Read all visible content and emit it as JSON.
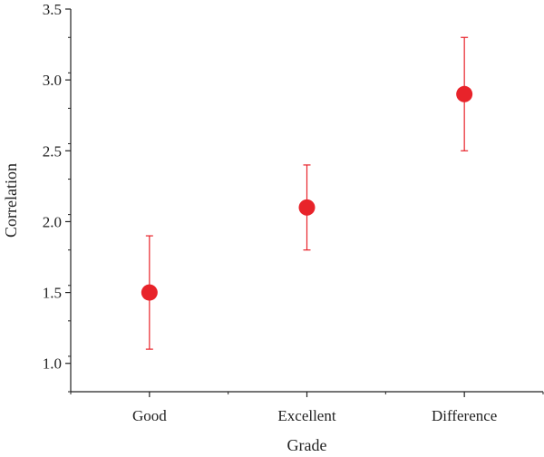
{
  "chart_data": {
    "type": "scatter",
    "title": "",
    "xlabel": "Grade",
    "ylabel": "Correlation",
    "categories": [
      "Good",
      "Excellent",
      "Difference"
    ],
    "series": [
      {
        "values": [
          1.5,
          2.1,
          2.9
        ],
        "error_low": [
          1.1,
          1.8,
          2.5
        ],
        "error_high": [
          1.9,
          2.4,
          3.3
        ]
      }
    ],
    "ylim": [
      0.8,
      3.5
    ],
    "yticks": [
      "1.0",
      "1.5",
      "2.0",
      "2.5",
      "3.0",
      "3.5"
    ],
    "grid": false,
    "colors": {
      "marker": "#e8232a",
      "errorbar": "#e8232a",
      "axis": "#222222"
    }
  }
}
